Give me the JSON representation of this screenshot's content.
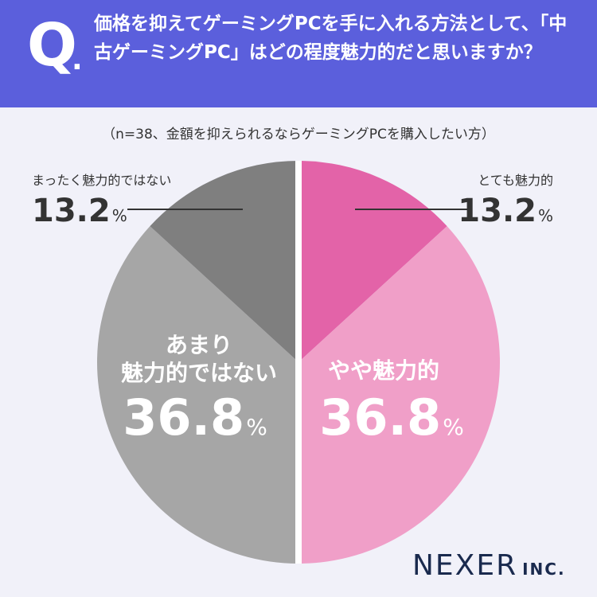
{
  "header": {
    "q_label": "Q",
    "q_dot": ".",
    "question": "価格を抑えてゲーミングPCを手に入れる方法として、「中古ゲーミングPC」はどの程度魅力的だと思いますか？"
  },
  "subtitle": "（n=38、金額を抑えられるならゲーミングPCを購入したい方）",
  "logo": {
    "main": "NEXER",
    "sub": "INC."
  },
  "colors": {
    "header_bg": "#5b5fdc",
    "very": "#e363a8",
    "somewhat": "#f09fc8",
    "not_very": "#a6a6a6",
    "not_at_all": "#7f7f7f"
  },
  "chart_data": {
    "type": "pie",
    "title": "価格を抑えてゲーミングPCを手に入れる方法として、「中古ゲーミングPC」はどの程度魅力的だと思いますか？",
    "n": 38,
    "unit": "%",
    "slices": [
      {
        "label": "とても魅力的",
        "value": 13.2,
        "color": "#e363a8"
      },
      {
        "label": "やや魅力的",
        "value": 36.8,
        "color": "#f09fc8"
      },
      {
        "label": "あまり魅力的ではない",
        "value": 36.8,
        "color": "#a6a6a6"
      },
      {
        "label": "まったく魅力的ではない",
        "value": 13.2,
        "color": "#7f7f7f"
      }
    ],
    "labels": {
      "very": {
        "name": "とても魅力的",
        "value": "13.2",
        "unit": "%"
      },
      "somewhat": {
        "name": "やや魅力的",
        "value": "36.8",
        "unit": "%"
      },
      "not_very_line1": "あまり",
      "not_very_line2": "魅力的ではない",
      "not_very": {
        "value": "36.8",
        "unit": "%"
      },
      "not_at_all": {
        "name": "まったく魅力的ではない",
        "value": "13.2",
        "unit": "%"
      }
    }
  }
}
